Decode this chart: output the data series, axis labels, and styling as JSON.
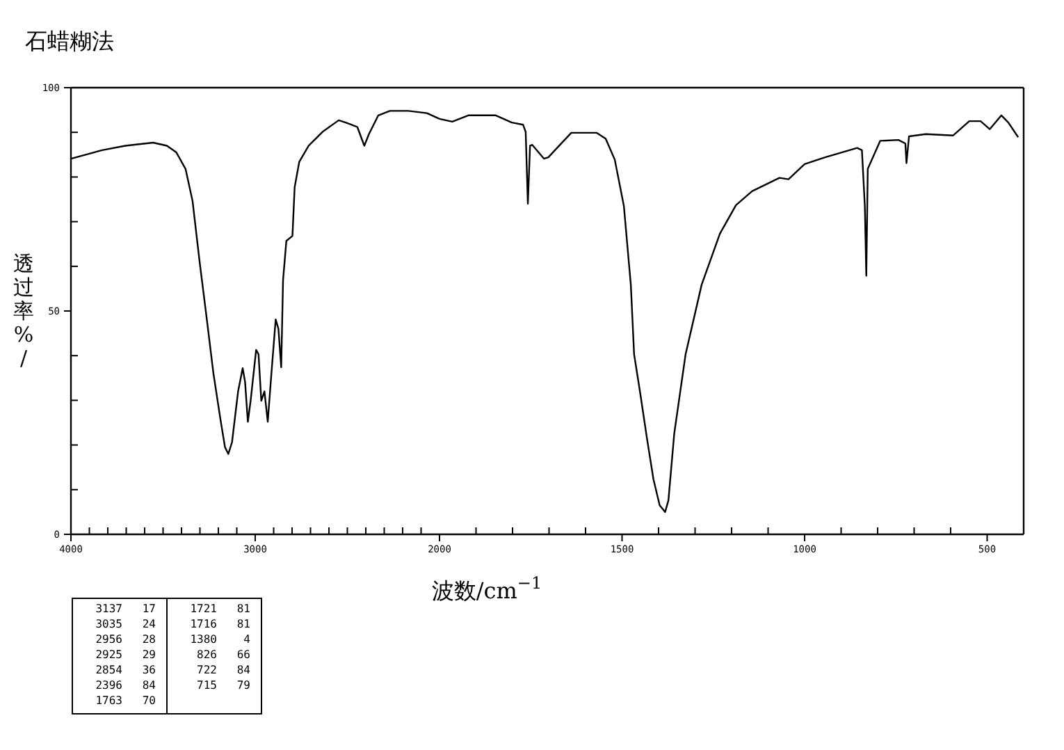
{
  "chart_data": [
    {
      "type": "line",
      "title": "石蜡糊法",
      "xlabel": "波数/cm$^{−1}$",
      "ylabel": "透过率%/",
      "x": [
        4000,
        3831,
        3705,
        3554,
        3479,
        3428,
        3378,
        3340,
        3302,
        3264,
        3227,
        3189,
        3164,
        3146,
        3126,
        3093,
        3068,
        3055,
        3040,
        3025,
        2995,
        2982,
        2967,
        2950,
        2932,
        2912,
        2889,
        2874,
        2859,
        2849,
        2831,
        2798,
        2786,
        2761,
        2710,
        2635,
        2547,
        2509,
        2446,
        2408,
        2383,
        2332,
        2269,
        2169,
        2068,
        2000
      ],
      "series": [
        {
          "color": "#000000",
          "values": [
            84.1,
            86.0,
            87.0,
            87.7,
            87.0,
            85.5,
            81.8,
            74.6,
            61.1,
            48.6,
            36.1,
            25.8,
            19.5,
            18.0,
            20.6,
            32.0,
            37.2,
            34.1,
            25.2,
            29.9,
            41.3,
            40.3,
            29.9,
            32.0,
            25.2,
            36.1,
            48.1,
            46.0,
            37.4,
            56.9,
            65.7,
            66.8,
            77.7,
            83.4,
            87.0,
            90.1,
            92.7,
            92.2,
            91.2,
            87.0,
            89.6,
            93.8,
            94.8,
            94.8,
            94.3,
            93.0
          ]
        }
      ],
      "xlim": [
        4000,
        2000
      ],
      "xticks": [
        4000,
        {
          "value": 3900,
          "label": null
        },
        {
          "value": 3800,
          "label": null
        },
        {
          "value": 3700,
          "label": null
        },
        {
          "value": 3600,
          "label": null
        },
        {
          "value": 3500,
          "label": null
        },
        {
          "value": 3400,
          "label": null
        },
        {
          "value": 3300,
          "label": null
        },
        {
          "value": 3200,
          "label": null
        },
        {
          "value": 3100,
          "label": null
        },
        3000,
        {
          "value": 2900,
          "label": null
        },
        {
          "value": 2800,
          "label": null
        },
        {
          "value": 2700,
          "label": null
        },
        {
          "value": 2600,
          "label": null
        },
        {
          "value": 2500,
          "label": null
        },
        {
          "value": 2400,
          "label": null
        },
        {
          "value": 2300,
          "label": null
        },
        {
          "value": 2200,
          "label": null
        },
        {
          "value": 2100,
          "label": null
        },
        2000
      ],
      "ylim": [
        0,
        100
      ],
      "yticks": [
        0,
        {
          "value": 10,
          "label": null
        },
        {
          "value": 20,
          "label": null
        },
        {
          "value": 30,
          "label": null
        },
        {
          "value": 40,
          "label": null
        },
        50,
        {
          "value": 60,
          "label": null
        },
        {
          "value": 70,
          "label": null
        },
        {
          "value": 80,
          "label": null
        },
        {
          "value": 90,
          "label": null
        },
        100
      ],
      "grid": false,
      "line_style": "solid",
      "annotations": [
        "3137 17",
        "3035 24",
        "2956 28",
        "2925 29",
        "2854 36",
        "2396 84",
        "1763 70",
        "1721 81",
        "1716 81",
        "1380 4",
        "826 66",
        "722 84",
        "715 79"
      ]
    },
    {
      "type": "line",
      "x": [
        2000,
        1965,
        1921,
        1846,
        1802,
        1771,
        1764,
        1758,
        1752,
        1746,
        1714,
        1702,
        1670,
        1639,
        1570,
        1545,
        1520,
        1495,
        1476,
        1467,
        1451,
        1432,
        1414,
        1397,
        1382,
        1373,
        1357,
        1326,
        1282,
        1232,
        1188,
        1144,
        1069,
        1044,
        1000,
        944,
        856,
        843,
        835,
        831,
        827,
        793,
        743,
        724,
        721,
        714,
        668,
        593,
        549,
        518,
        493,
        461,
        442,
        415
      ],
      "series": [
        {
          "color": "#000000",
          "values": [
            93.0,
            92.4,
            93.8,
            93.8,
            92.2,
            91.7,
            90.1,
            74.0,
            87.0,
            87.2,
            84.1,
            84.4,
            87.2,
            89.9,
            89.9,
            88.6,
            83.9,
            73.5,
            55.9,
            40.3,
            32.0,
            21.6,
            12.3,
            6.5,
            5.0,
            7.6,
            22.6,
            40.3,
            55.9,
            67.3,
            73.7,
            76.8,
            79.8,
            79.5,
            82.9,
            84.4,
            86.5,
            86.0,
            73.5,
            57.9,
            81.8,
            88.1,
            88.3,
            87.5,
            83.1,
            89.1,
            89.6,
            89.3,
            92.5,
            92.5,
            90.7,
            93.8,
            92.2,
            88.9
          ]
        }
      ],
      "xlim": [
        2000,
        400
      ],
      "xticks": [
        {
          "value": 1900,
          "label": null
        },
        {
          "value": 1800,
          "label": null
        },
        {
          "value": 1700,
          "label": null
        },
        {
          "value": 1600,
          "label": null
        },
        1500,
        {
          "value": 1400,
          "label": null
        },
        {
          "value": 1300,
          "label": null
        },
        {
          "value": 1200,
          "label": null
        },
        {
          "value": 1100,
          "label": null
        },
        1000,
        {
          "value": 900,
          "label": null
        },
        {
          "value": 800,
          "label": null
        },
        {
          "value": 700,
          "label": null
        },
        {
          "value": 600,
          "label": null
        },
        500,
        {
          "value": 400,
          "label": null
        }
      ],
      "ylim": [
        0,
        100
      ],
      "tick_labels": "x",
      "grid": false,
      "line_style": "solid"
    }
  ]
}
